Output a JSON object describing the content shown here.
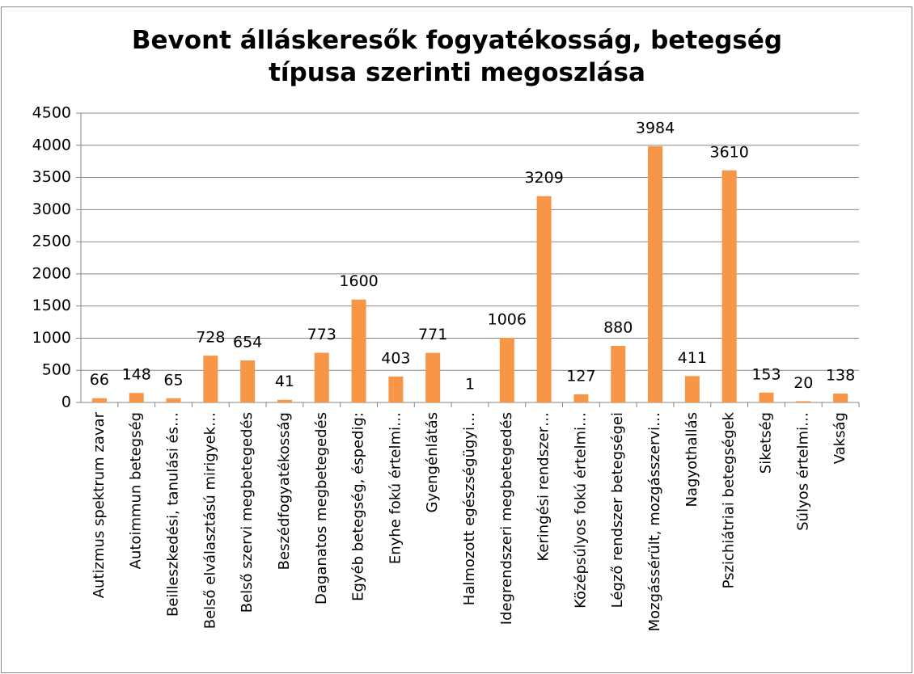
{
  "chart_data": {
    "type": "bar",
    "title": "Bevont álláskeresők  fogyatékosság, betegség típusa szerinti megoszlása",
    "categories": [
      "Autizmus spektrum zavar",
      "Autoimmun betegség",
      "Beilleszkedési, tanulási és…",
      "Belső elválasztású mirigyek…",
      "Belső szervi megbetegedés",
      "Beszédfogyatékosság",
      "Daganatos megbetegedés",
      "Egyéb betegség, éspedig:",
      "Enyhe fokú értelmi…",
      "Gyengénlátás",
      "Halmozott egészségügyi…",
      "Idegrendszeri megbetegedés",
      "Keringési rendszer…",
      "Középsúlyos fokú értelmi…",
      "Légző rendszer betegségei",
      "Mozgássérült, mozgásszervi…",
      "Nagyothallás",
      "Pszichiátriai betegségek",
      "Siketség",
      "Súlyos értelmi…",
      "Vakság"
    ],
    "values": [
      66,
      148,
      65,
      728,
      654,
      41,
      773,
      1600,
      403,
      771,
      1,
      1006,
      3209,
      127,
      880,
      3984,
      411,
      3610,
      153,
      20,
      138
    ],
    "color": "#f79646",
    "ylim": [
      0,
      4500
    ],
    "yticks": [
      0,
      500,
      1000,
      1500,
      2000,
      2500,
      3000,
      3500,
      4000,
      4500
    ],
    "grid": true
  }
}
